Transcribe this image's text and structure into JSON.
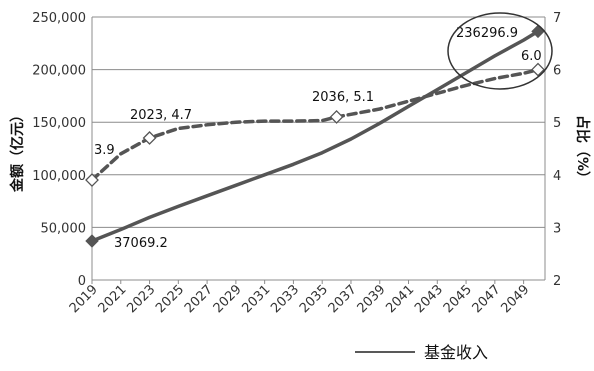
{
  "chart_data": {
    "type": "line",
    "left_axis": {
      "label": "金额（亿元）",
      "min": 0,
      "max": 250000,
      "ticks": [
        "0",
        "50,000",
        "100,000",
        "150,000",
        "200,000",
        "250,000"
      ]
    },
    "right_axis": {
      "label": "占比（%）",
      "min": 2,
      "max": 7,
      "ticks": [
        "2",
        "3",
        "4",
        "5",
        "6",
        "7"
      ]
    },
    "x_ticks": [
      "2019",
      "2021",
      "2023",
      "2025",
      "2027",
      "2029",
      "2031",
      "2033",
      "2035",
      "2037",
      "2039",
      "2041",
      "2043",
      "2045",
      "2047",
      "2049"
    ],
    "grid": "horizontal",
    "series": [
      {
        "name": "基金收入",
        "axis": "left",
        "style": "solid",
        "color": "#555555",
        "x": [
          2019,
          2021,
          2023,
          2025,
          2027,
          2029,
          2031,
          2033,
          2035,
          2037,
          2039,
          2041,
          2043,
          2045,
          2047,
          2049,
          2050
        ],
        "y": [
          37069.2,
          48000,
          59500,
          70000,
          80000,
          90000,
          100000,
          110000,
          121000,
          134000,
          149000,
          165000,
          181000,
          197000,
          213000,
          228000,
          236296.9
        ]
      },
      {
        "axis": "right",
        "style": "dashed",
        "color": "#555555",
        "x": [
          2019,
          2021,
          2023,
          2025,
          2027,
          2029,
          2031,
          2033,
          2035,
          2036,
          2037,
          2039,
          2041,
          2043,
          2045,
          2047,
          2049,
          2050
        ],
        "y": [
          3.9,
          4.4,
          4.7,
          4.88,
          4.95,
          5.0,
          5.02,
          5.02,
          5.03,
          5.1,
          5.15,
          5.25,
          5.4,
          5.55,
          5.7,
          5.83,
          5.93,
          6.0
        ]
      }
    ],
    "markers": [
      {
        "series": 0,
        "x": 2019,
        "y": 37069.2,
        "shape": "filled-diamond"
      },
      {
        "series": 0,
        "x": 2050,
        "y": 236296.9,
        "shape": "filled-diamond"
      },
      {
        "series": 1,
        "x": 2019,
        "y": 3.9,
        "shape": "open-diamond"
      },
      {
        "series": 1,
        "x": 2023,
        "y": 4.7,
        "shape": "open-diamond"
      },
      {
        "series": 1,
        "x": 2036,
        "y": 5.1,
        "shape": "open-diamond"
      },
      {
        "series": 1,
        "x": 2050,
        "y": 6.0,
        "shape": "open-diamond"
      }
    ],
    "annotations": [
      {
        "text": "37069.2"
      },
      {
        "text": "3.9"
      },
      {
        "text": "2023, 4.7"
      },
      {
        "text": "2036, 5.1"
      },
      {
        "text": "236296.9"
      },
      {
        "text": "6.0"
      }
    ],
    "legend": [
      {
        "label": "基金收入",
        "style": "solid"
      }
    ]
  }
}
